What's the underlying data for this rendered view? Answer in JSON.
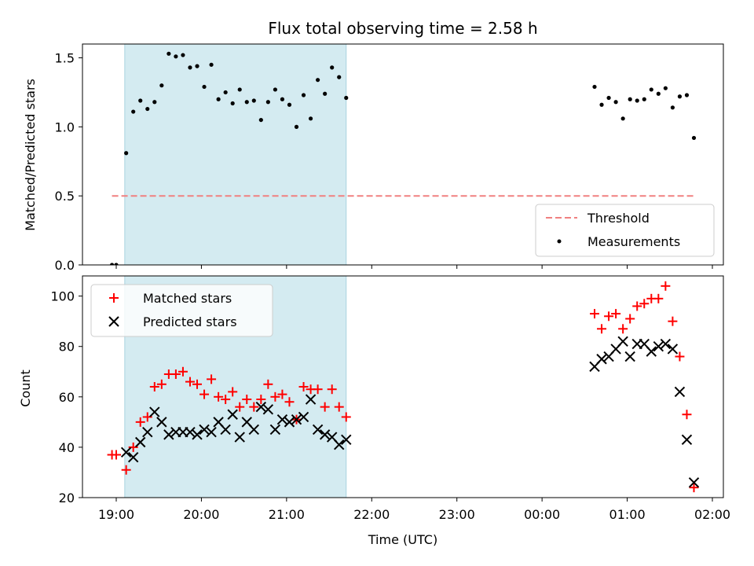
{
  "chart_data": {
    "title": "Flux total observing time = 2.58 h",
    "xlabel": "Time (UTC)",
    "x_ticks": [
      "19:00",
      "20:00",
      "21:00",
      "22:00",
      "23:00",
      "00:00",
      "01:00",
      "02:00"
    ],
    "colors": {
      "highlight": "#d4ebf1",
      "threshold": "#f08080",
      "matched": "#ff0000",
      "predicted": "#000000",
      "measurements": "#000000"
    },
    "highlight_span": {
      "start": "19:06",
      "end": "21:42"
    },
    "panels": [
      {
        "type": "scatter",
        "ylabel": "Matched/Predicted stars",
        "ylim": [
          0,
          1.6
        ],
        "y_ticks": [
          "0.0",
          "0.5",
          "1.0",
          "1.5"
        ],
        "threshold": {
          "name": "Threshold",
          "value": 0.5,
          "x_start": "18:57",
          "x_end": "01:47"
        },
        "legend_position": "lower-right",
        "series": [
          {
            "name": "Measurements",
            "x": [
              "18:57",
              "19:00",
              "19:07",
              "19:12",
              "19:17",
              "19:22",
              "19:27",
              "19:32",
              "19:37",
              "19:42",
              "19:47",
              "19:52",
              "19:57",
              "20:02",
              "20:07",
              "20:12",
              "20:17",
              "20:22",
              "20:27",
              "20:32",
              "20:37",
              "20:42",
              "20:47",
              "20:52",
              "20:57",
              "21:02",
              "21:07",
              "21:12",
              "21:17",
              "21:22",
              "21:27",
              "21:32",
              "21:37",
              "21:42",
              "00:37",
              "00:42",
              "00:47",
              "00:52",
              "00:57",
              "01:02",
              "01:07",
              "01:12",
              "01:17",
              "01:22",
              "01:27",
              "01:32",
              "01:37",
              "01:42",
              "01:47"
            ],
            "values": [
              0.0,
              0.0,
              0.81,
              1.11,
              1.19,
              1.13,
              1.18,
              1.3,
              1.53,
              1.51,
              1.52,
              1.43,
              1.44,
              1.29,
              1.45,
              1.2,
              1.25,
              1.17,
              1.27,
              1.18,
              1.19,
              1.05,
              1.18,
              1.27,
              1.2,
              1.16,
              1.0,
              1.23,
              1.06,
              1.34,
              1.24,
              1.43,
              1.36,
              1.21,
              1.29,
              1.16,
              1.21,
              1.18,
              1.06,
              1.2,
              1.19,
              1.2,
              1.27,
              1.24,
              1.28,
              1.14,
              1.22,
              1.23,
              0.92
            ]
          }
        ]
      },
      {
        "type": "scatter",
        "ylabel": "Count",
        "ylim": [
          20,
          108
        ],
        "y_ticks": [
          "20",
          "40",
          "60",
          "80",
          "100"
        ],
        "legend_position": "upper-left",
        "series": [
          {
            "name": "Matched stars",
            "marker": "plus",
            "x": [
              "18:57",
              "19:00",
              "19:07",
              "19:12",
              "19:17",
              "19:22",
              "19:27",
              "19:32",
              "19:37",
              "19:42",
              "19:47",
              "19:52",
              "19:57",
              "20:02",
              "20:07",
              "20:12",
              "20:17",
              "20:22",
              "20:27",
              "20:32",
              "20:37",
              "20:42",
              "20:47",
              "20:52",
              "20:57",
              "21:02",
              "21:07",
              "21:12",
              "21:17",
              "21:22",
              "21:27",
              "21:32",
              "21:37",
              "21:42",
              "00:37",
              "00:42",
              "00:47",
              "00:52",
              "00:57",
              "01:02",
              "01:07",
              "01:12",
              "01:17",
              "01:22",
              "01:27",
              "01:32",
              "01:37",
              "01:42",
              "01:47"
            ],
            "values": [
              37,
              37,
              31,
              40,
              50,
              52,
              64,
              65,
              69,
              69,
              70,
              66,
              65,
              61,
              67,
              60,
              59,
              62,
              56,
              59,
              56,
              59,
              65,
              60,
              61,
              58,
              51,
              64,
              63,
              63,
              56,
              63,
              56,
              52,
              93,
              87,
              92,
              93,
              87,
              91,
              96,
              97,
              99,
              99,
              104,
              90,
              76,
              53,
              24
            ]
          },
          {
            "name": "Predicted stars",
            "marker": "x",
            "x": [
              "19:07",
              "19:12",
              "19:17",
              "19:22",
              "19:27",
              "19:32",
              "19:37",
              "19:42",
              "19:47",
              "19:52",
              "19:57",
              "20:02",
              "20:07",
              "20:12",
              "20:17",
              "20:22",
              "20:27",
              "20:32",
              "20:37",
              "20:42",
              "20:47",
              "20:52",
              "20:57",
              "21:02",
              "21:07",
              "21:12",
              "21:17",
              "21:22",
              "21:27",
              "21:32",
              "21:37",
              "21:42",
              "00:37",
              "00:42",
              "00:47",
              "00:52",
              "00:57",
              "01:02",
              "01:07",
              "01:12",
              "01:17",
              "01:22",
              "01:27",
              "01:32",
              "01:37",
              "01:42",
              "01:47"
            ],
            "values": [
              38,
              36,
              42,
              46,
              54,
              50,
              45,
              46,
              46,
              46,
              45,
              47,
              46,
              50,
              47,
              53,
              44,
              50,
              47,
              56,
              55,
              47,
              51,
              50,
              51,
              52,
              59,
              47,
              45,
              44,
              41,
              43,
              72,
              75,
              76,
              79,
              82,
              76,
              81,
              81,
              78,
              80,
              81,
              79,
              62,
              43,
              26
            ]
          }
        ]
      }
    ]
  }
}
